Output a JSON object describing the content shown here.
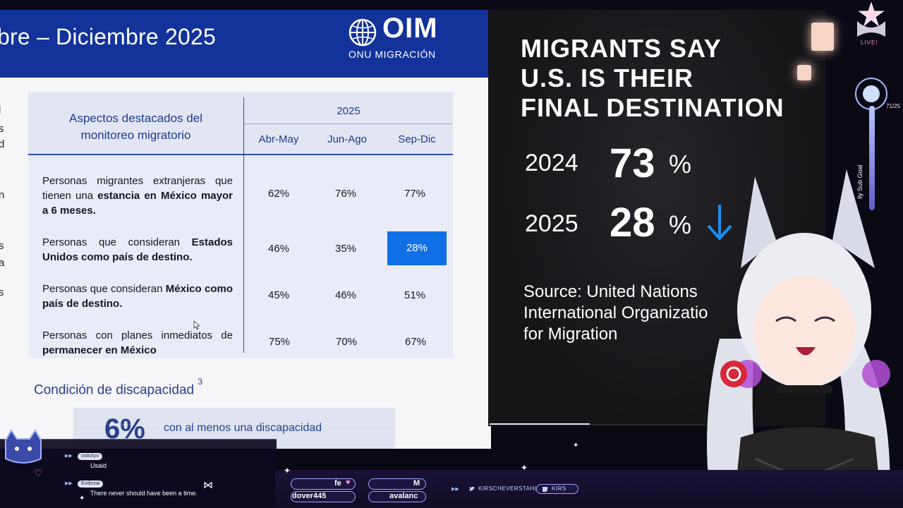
{
  "slide": {
    "title": "bre – Diciembre 2025",
    "logo_text": "OIM",
    "logo_sub": "ONU MIGRACIÓN",
    "edge_letters": [
      "l",
      "s",
      "d",
      "n",
      "s",
      "a",
      "s"
    ],
    "table": {
      "header_left_line1": "Aspectos destacados del",
      "header_left_line2": "monitoreo migratorio",
      "year": "2025",
      "periods": [
        "Abr-May",
        "Jun-Ago",
        "Sep-Dic"
      ],
      "rows": [
        {
          "label_plain_1": "Personas migrantes extranjeras que tienen una ",
          "label_bold": "estancia en México mayor a 6 meses.",
          "label_plain_2": "",
          "values": [
            "62%",
            "76%",
            "77%"
          ]
        },
        {
          "label_plain_1": "Personas que consideran ",
          "label_bold": "Estados Unidos como país de destino.",
          "label_plain_2": "",
          "values": [
            "46%",
            "35%",
            "28%"
          ]
        },
        {
          "label_plain_1": "Personas que consideran ",
          "label_bold": "México como país de destino.",
          "label_plain_2": "",
          "values": [
            "45%",
            "46%",
            "51%"
          ]
        },
        {
          "label_plain_1": "Personas con planes inmediatos de ",
          "label_bold": "permanecer en México",
          "label_plain_2": "",
          "values": [
            "75%",
            "70%",
            "67%"
          ]
        }
      ],
      "highlight_color": "#0f6fe6"
    },
    "disability_title": "Condición de discapacidad",
    "disability_sup": "3",
    "disability_pct": "6%",
    "disability_text": "con al menos una discapacidad"
  },
  "panel": {
    "headline": [
      "MIGRANTS SAY",
      "U.S. IS THEIR",
      "FINAL DESTINATION"
    ],
    "stats": [
      {
        "year": "2024",
        "value": "73",
        "unit": "%"
      },
      {
        "year": "2025",
        "value": "28",
        "unit": "%"
      }
    ],
    "arrow_icon": "down-arrow-icon",
    "arrow_color": "#1e8cf0",
    "source": [
      "Source: United Nations",
      "International Organizatio",
      "for Migration"
    ]
  },
  "overlay": {
    "live_label": "LIVE!",
    "sub_goal_label": "lly Sub Goal",
    "goal_count": "71/25",
    "chat": [
      {
        "user": "ostickyo",
        "message": "Usaid"
      },
      {
        "user": "Evdinzai",
        "message": "There never should have been a time."
      }
    ],
    "pills": [
      {
        "text": "fe"
      },
      {
        "text": "M"
      },
      {
        "text": "dover445"
      },
      {
        "text": "avalanc"
      }
    ],
    "social_handles": [
      "KIRSCHEVERSTAHL",
      "KIRS"
    ],
    "accent": "#9fa6ff"
  }
}
